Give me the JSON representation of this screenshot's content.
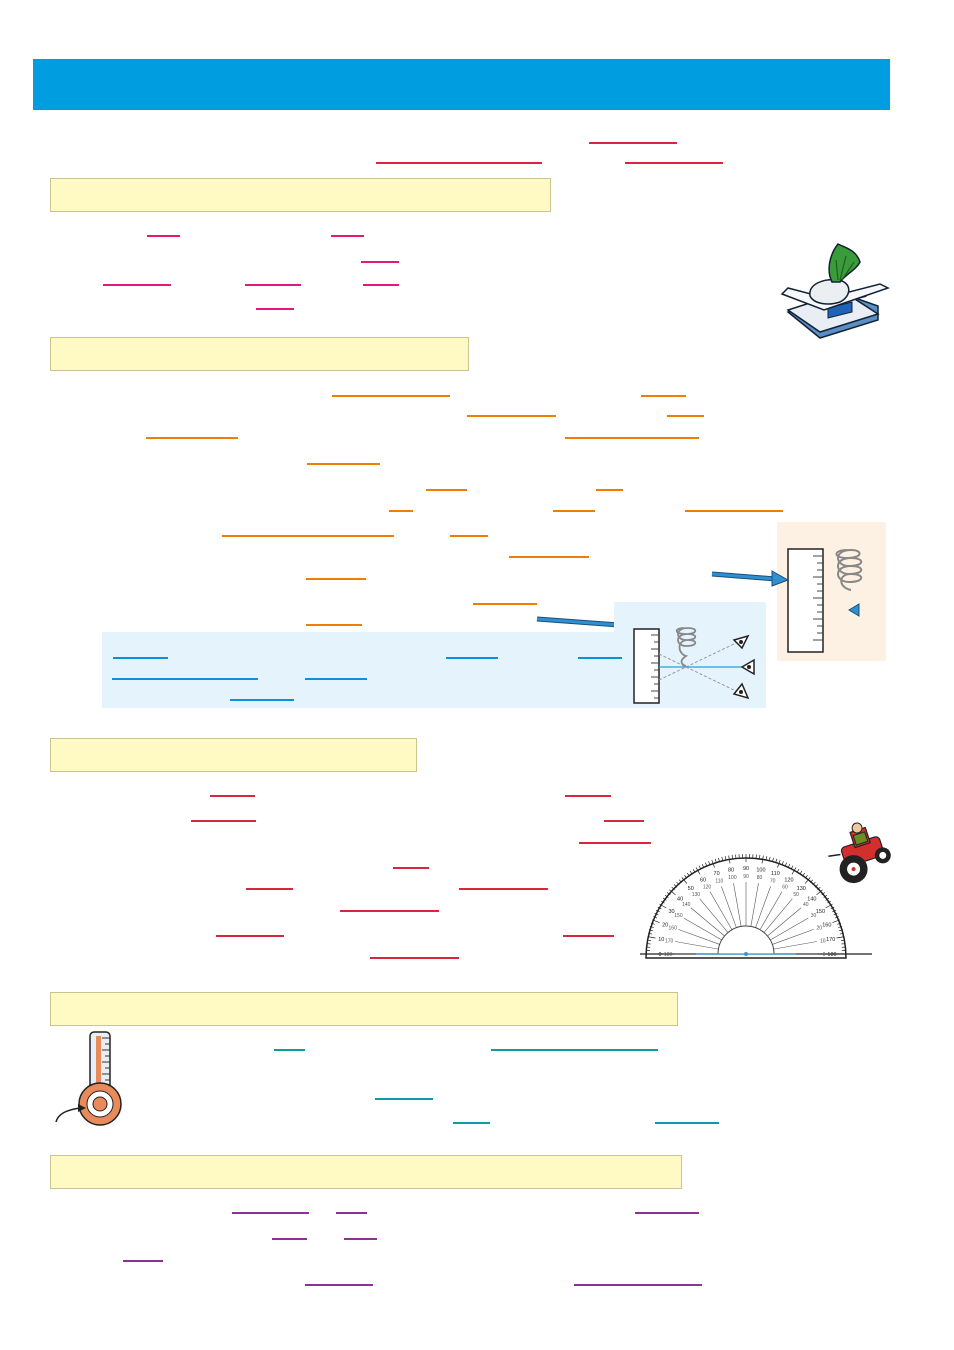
{
  "page": {
    "banner_color": "#009ee0",
    "heading_box_color": "#fff9c4",
    "accent_colors": {
      "intro": "#d7263d",
      "mass": "#e2187a",
      "length": "#ef7d00",
      "reading": "#0e8fd6",
      "angle": "#d7263d",
      "temperature": "#0f9aa5",
      "time": "#8e2f9a"
    }
  },
  "illustrations": [
    {
      "name": "kitchen-scale-with-turnip-icon"
    },
    {
      "name": "ruler-and-spring-icon"
    },
    {
      "name": "eye-parallax-diagram-icon"
    },
    {
      "name": "protractor-with-tractor-icon"
    },
    {
      "name": "thermometer-icon"
    }
  ],
  "protractor": {
    "outer_scale": [
      "0",
      "10",
      "20",
      "30",
      "40",
      "50",
      "60",
      "70",
      "80",
      "90",
      "100",
      "110",
      "120",
      "130",
      "140",
      "150",
      "160",
      "170",
      "180"
    ],
    "inner_scale": [
      "180",
      "170",
      "160",
      "150",
      "140",
      "130",
      "120",
      "110",
      "100",
      "90",
      "80",
      "70",
      "60",
      "50",
      "40",
      "30",
      "20",
      "10",
      "0"
    ]
  }
}
